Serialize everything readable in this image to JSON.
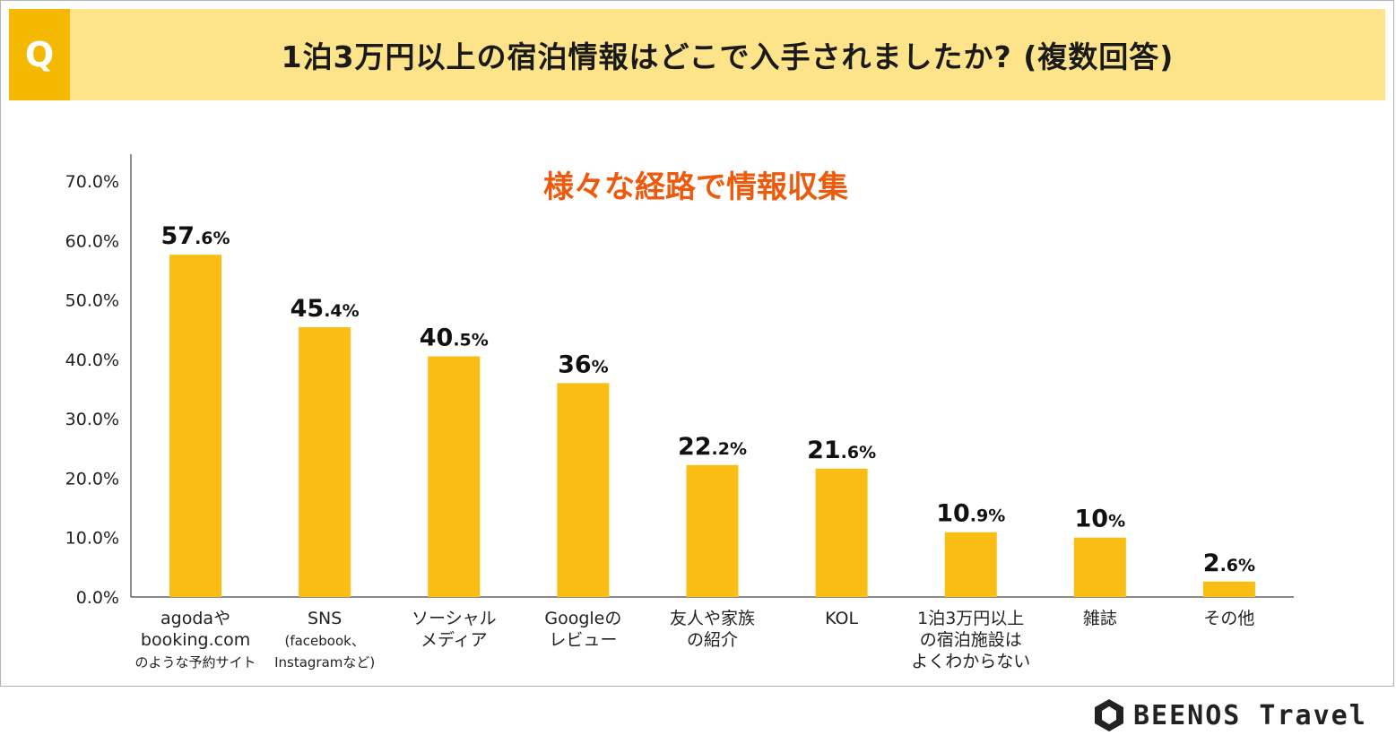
{
  "header": {
    "q_label": "Q",
    "title": "1泊3万円以上の宿泊情報はどこで入手されましたか? (複数回答)"
  },
  "colors": {
    "bar": "#fabd14",
    "header_bg": "#fde38a",
    "q_box": "#f5b800",
    "subtitle": "#ee5a0c"
  },
  "chart_data": {
    "type": "bar",
    "title": "1泊3万円以上の宿泊情報はどこで入手されましたか? (複数回答)",
    "subtitle": "様々な経路で情報収集",
    "xlabel": "",
    "ylabel": "",
    "ylim": [
      0,
      70
    ],
    "yticks": [
      "0.0%",
      "10.0%",
      "20.0%",
      "30.0%",
      "40.0%",
      "50.0%",
      "60.0%",
      "70.0%"
    ],
    "grid": false,
    "categories": [
      [
        "agodaや",
        "booking.com",
        "のような予約サイト"
      ],
      [
        "SNS",
        "(facebook、",
        "Instagramなど)"
      ],
      [
        "ソーシャル",
        "メディア"
      ],
      [
        "Googleの",
        "レビュー"
      ],
      [
        "友人や家族",
        "の紹介"
      ],
      [
        "KOL"
      ],
      [
        "1泊3万円以上",
        "の宿泊施設は",
        "よくわからない"
      ],
      [
        "雑誌"
      ],
      [
        "その他"
      ]
    ],
    "values": [
      57.6,
      45.4,
      40.5,
      36,
      22.2,
      21.6,
      10.9,
      10,
      2.6
    ],
    "value_labels": [
      [
        "57",
        ".6%"
      ],
      [
        "45",
        ".4%"
      ],
      [
        "40",
        ".5%"
      ],
      [
        "36",
        "%"
      ],
      [
        "22",
        ".2%"
      ],
      [
        "21",
        ".6%"
      ],
      [
        "10",
        ".9%"
      ],
      [
        "10",
        "%"
      ],
      [
        "2",
        ".6%"
      ]
    ]
  },
  "footer": {
    "logo_text": "BEENOS Travel",
    "logo_icon": "hexagon-logo-icon"
  }
}
